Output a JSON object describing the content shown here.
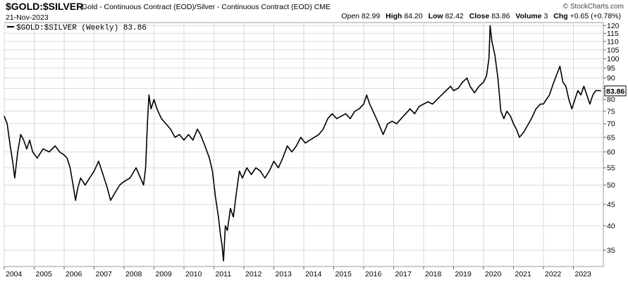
{
  "header": {
    "symbol": "$GOLD:$SILVER",
    "description": "Gold - Continuous Contract (EOD)/Silver - Continuous Contract (EOD) CME",
    "credit": "© StockCharts.com",
    "date": "21-Nov-2023",
    "open_label": "Open",
    "open": "82.99",
    "high_label": "High",
    "high": "84.20",
    "low_label": "Low",
    "low": "82.42",
    "close_label": "Close",
    "close": "83.86",
    "volume_label": "Volume",
    "volume": "3",
    "chg_label": "Chg",
    "chg": "+0.65 (+0.78%)"
  },
  "chart_data": {
    "type": "line",
    "title": "$GOLD:$SILVER",
    "legend": [
      "$GOLD:$SILVER (Weekly) 83.86"
    ],
    "legend_placement": "top-left",
    "y_scale": "log",
    "ylim": [
      32,
      122
    ],
    "xlim": [
      2004.0,
      2024.0
    ],
    "grid": true,
    "y_ticks": [
      35,
      40,
      45,
      50,
      55,
      60,
      65,
      70,
      75,
      80,
      85,
      90,
      95,
      100,
      105,
      110,
      115,
      120
    ],
    "x_ticks": [
      "2004",
      "2005",
      "2006",
      "2007",
      "2008",
      "2009",
      "2010",
      "2011",
      "2012",
      "2013",
      "2014",
      "2015",
      "2016",
      "2017",
      "2018",
      "2019",
      "2020",
      "2021",
      "2022",
      "2023"
    ],
    "last_value_label": "83.86",
    "series": [
      {
        "name": "$GOLD:$SILVER (Weekly)",
        "color": "#000000",
        "points": [
          [
            2004.0,
            73
          ],
          [
            2004.1,
            70
          ],
          [
            2004.2,
            62
          ],
          [
            2004.28,
            57
          ],
          [
            2004.35,
            52
          ],
          [
            2004.45,
            60
          ],
          [
            2004.55,
            66
          ],
          [
            2004.65,
            64
          ],
          [
            2004.75,
            61
          ],
          [
            2004.85,
            64
          ],
          [
            2004.95,
            60
          ],
          [
            2005.1,
            58
          ],
          [
            2005.3,
            61
          ],
          [
            2005.5,
            60
          ],
          [
            2005.7,
            62
          ],
          [
            2005.85,
            60
          ],
          [
            2006.0,
            59
          ],
          [
            2006.1,
            58
          ],
          [
            2006.2,
            55
          ],
          [
            2006.3,
            50
          ],
          [
            2006.38,
            46
          ],
          [
            2006.45,
            49
          ],
          [
            2006.55,
            52
          ],
          [
            2006.7,
            50
          ],
          [
            2006.85,
            52
          ],
          [
            2007.0,
            54
          ],
          [
            2007.15,
            57
          ],
          [
            2007.3,
            53
          ],
          [
            2007.45,
            49
          ],
          [
            2007.55,
            46
          ],
          [
            2007.7,
            48
          ],
          [
            2007.85,
            50
          ],
          [
            2008.0,
            51
          ],
          [
            2008.2,
            52
          ],
          [
            2008.4,
            55
          ],
          [
            2008.55,
            52
          ],
          [
            2008.65,
            50
          ],
          [
            2008.72,
            55
          ],
          [
            2008.78,
            70
          ],
          [
            2008.83,
            82
          ],
          [
            2008.9,
            76
          ],
          [
            2009.0,
            80
          ],
          [
            2009.1,
            76
          ],
          [
            2009.25,
            72
          ],
          [
            2009.4,
            70
          ],
          [
            2009.55,
            68
          ],
          [
            2009.7,
            65
          ],
          [
            2009.85,
            66
          ],
          [
            2010.0,
            64
          ],
          [
            2010.15,
            66
          ],
          [
            2010.3,
            64
          ],
          [
            2010.45,
            68
          ],
          [
            2010.55,
            66
          ],
          [
            2010.7,
            62
          ],
          [
            2010.85,
            58
          ],
          [
            2010.95,
            54
          ],
          [
            2011.05,
            47
          ],
          [
            2011.15,
            42
          ],
          [
            2011.22,
            38
          ],
          [
            2011.27,
            36
          ],
          [
            2011.32,
            33
          ],
          [
            2011.38,
            40
          ],
          [
            2011.45,
            39
          ],
          [
            2011.55,
            44
          ],
          [
            2011.65,
            42
          ],
          [
            2011.75,
            48
          ],
          [
            2011.85,
            54
          ],
          [
            2011.95,
            52
          ],
          [
            2012.1,
            55
          ],
          [
            2012.25,
            53
          ],
          [
            2012.4,
            55
          ],
          [
            2012.55,
            54
          ],
          [
            2012.7,
            52
          ],
          [
            2012.85,
            54
          ],
          [
            2013.0,
            57
          ],
          [
            2013.15,
            55
          ],
          [
            2013.3,
            58
          ],
          [
            2013.45,
            62
          ],
          [
            2013.6,
            60
          ],
          [
            2013.75,
            62
          ],
          [
            2013.9,
            65
          ],
          [
            2014.05,
            63
          ],
          [
            2014.2,
            64
          ],
          [
            2014.35,
            65
          ],
          [
            2014.5,
            66
          ],
          [
            2014.65,
            68
          ],
          [
            2014.8,
            72
          ],
          [
            2014.95,
            74
          ],
          [
            2015.1,
            72
          ],
          [
            2015.25,
            73
          ],
          [
            2015.4,
            74
          ],
          [
            2015.55,
            72
          ],
          [
            2015.7,
            75
          ],
          [
            2015.85,
            76
          ],
          [
            2016.0,
            78
          ],
          [
            2016.1,
            82
          ],
          [
            2016.2,
            78
          ],
          [
            2016.35,
            74
          ],
          [
            2016.5,
            70
          ],
          [
            2016.65,
            66
          ],
          [
            2016.8,
            70
          ],
          [
            2016.95,
            71
          ],
          [
            2017.1,
            70
          ],
          [
            2017.25,
            72
          ],
          [
            2017.4,
            74
          ],
          [
            2017.55,
            76
          ],
          [
            2017.7,
            74
          ],
          [
            2017.85,
            77
          ],
          [
            2018.0,
            78
          ],
          [
            2018.15,
            79
          ],
          [
            2018.3,
            78
          ],
          [
            2018.45,
            80
          ],
          [
            2018.6,
            82
          ],
          [
            2018.75,
            84
          ],
          [
            2018.9,
            86
          ],
          [
            2019.0,
            84
          ],
          [
            2019.15,
            85
          ],
          [
            2019.3,
            88
          ],
          [
            2019.45,
            90
          ],
          [
            2019.55,
            86
          ],
          [
            2019.7,
            83
          ],
          [
            2019.85,
            86
          ],
          [
            2020.0,
            88
          ],
          [
            2020.1,
            91
          ],
          [
            2020.18,
            100
          ],
          [
            2020.22,
            120
          ],
          [
            2020.28,
            110
          ],
          [
            2020.38,
            102
          ],
          [
            2020.48,
            90
          ],
          [
            2020.58,
            75
          ],
          [
            2020.68,
            72
          ],
          [
            2020.78,
            75
          ],
          [
            2020.9,
            73
          ],
          [
            2021.0,
            70
          ],
          [
            2021.1,
            68
          ],
          [
            2021.2,
            65
          ],
          [
            2021.35,
            67
          ],
          [
            2021.5,
            70
          ],
          [
            2021.6,
            72
          ],
          [
            2021.75,
            76
          ],
          [
            2021.9,
            78
          ],
          [
            2022.0,
            78
          ],
          [
            2022.1,
            80
          ],
          [
            2022.2,
            82
          ],
          [
            2022.3,
            86
          ],
          [
            2022.4,
            90
          ],
          [
            2022.5,
            94
          ],
          [
            2022.55,
            96
          ],
          [
            2022.65,
            88
          ],
          [
            2022.75,
            86
          ],
          [
            2022.85,
            80
          ],
          [
            2022.95,
            76
          ],
          [
            2023.05,
            80
          ],
          [
            2023.15,
            84
          ],
          [
            2023.25,
            82
          ],
          [
            2023.35,
            86
          ],
          [
            2023.45,
            82
          ],
          [
            2023.55,
            78
          ],
          [
            2023.65,
            82
          ],
          [
            2023.75,
            84
          ],
          [
            2023.85,
            84
          ],
          [
            2023.92,
            83.86
          ]
        ]
      }
    ]
  }
}
